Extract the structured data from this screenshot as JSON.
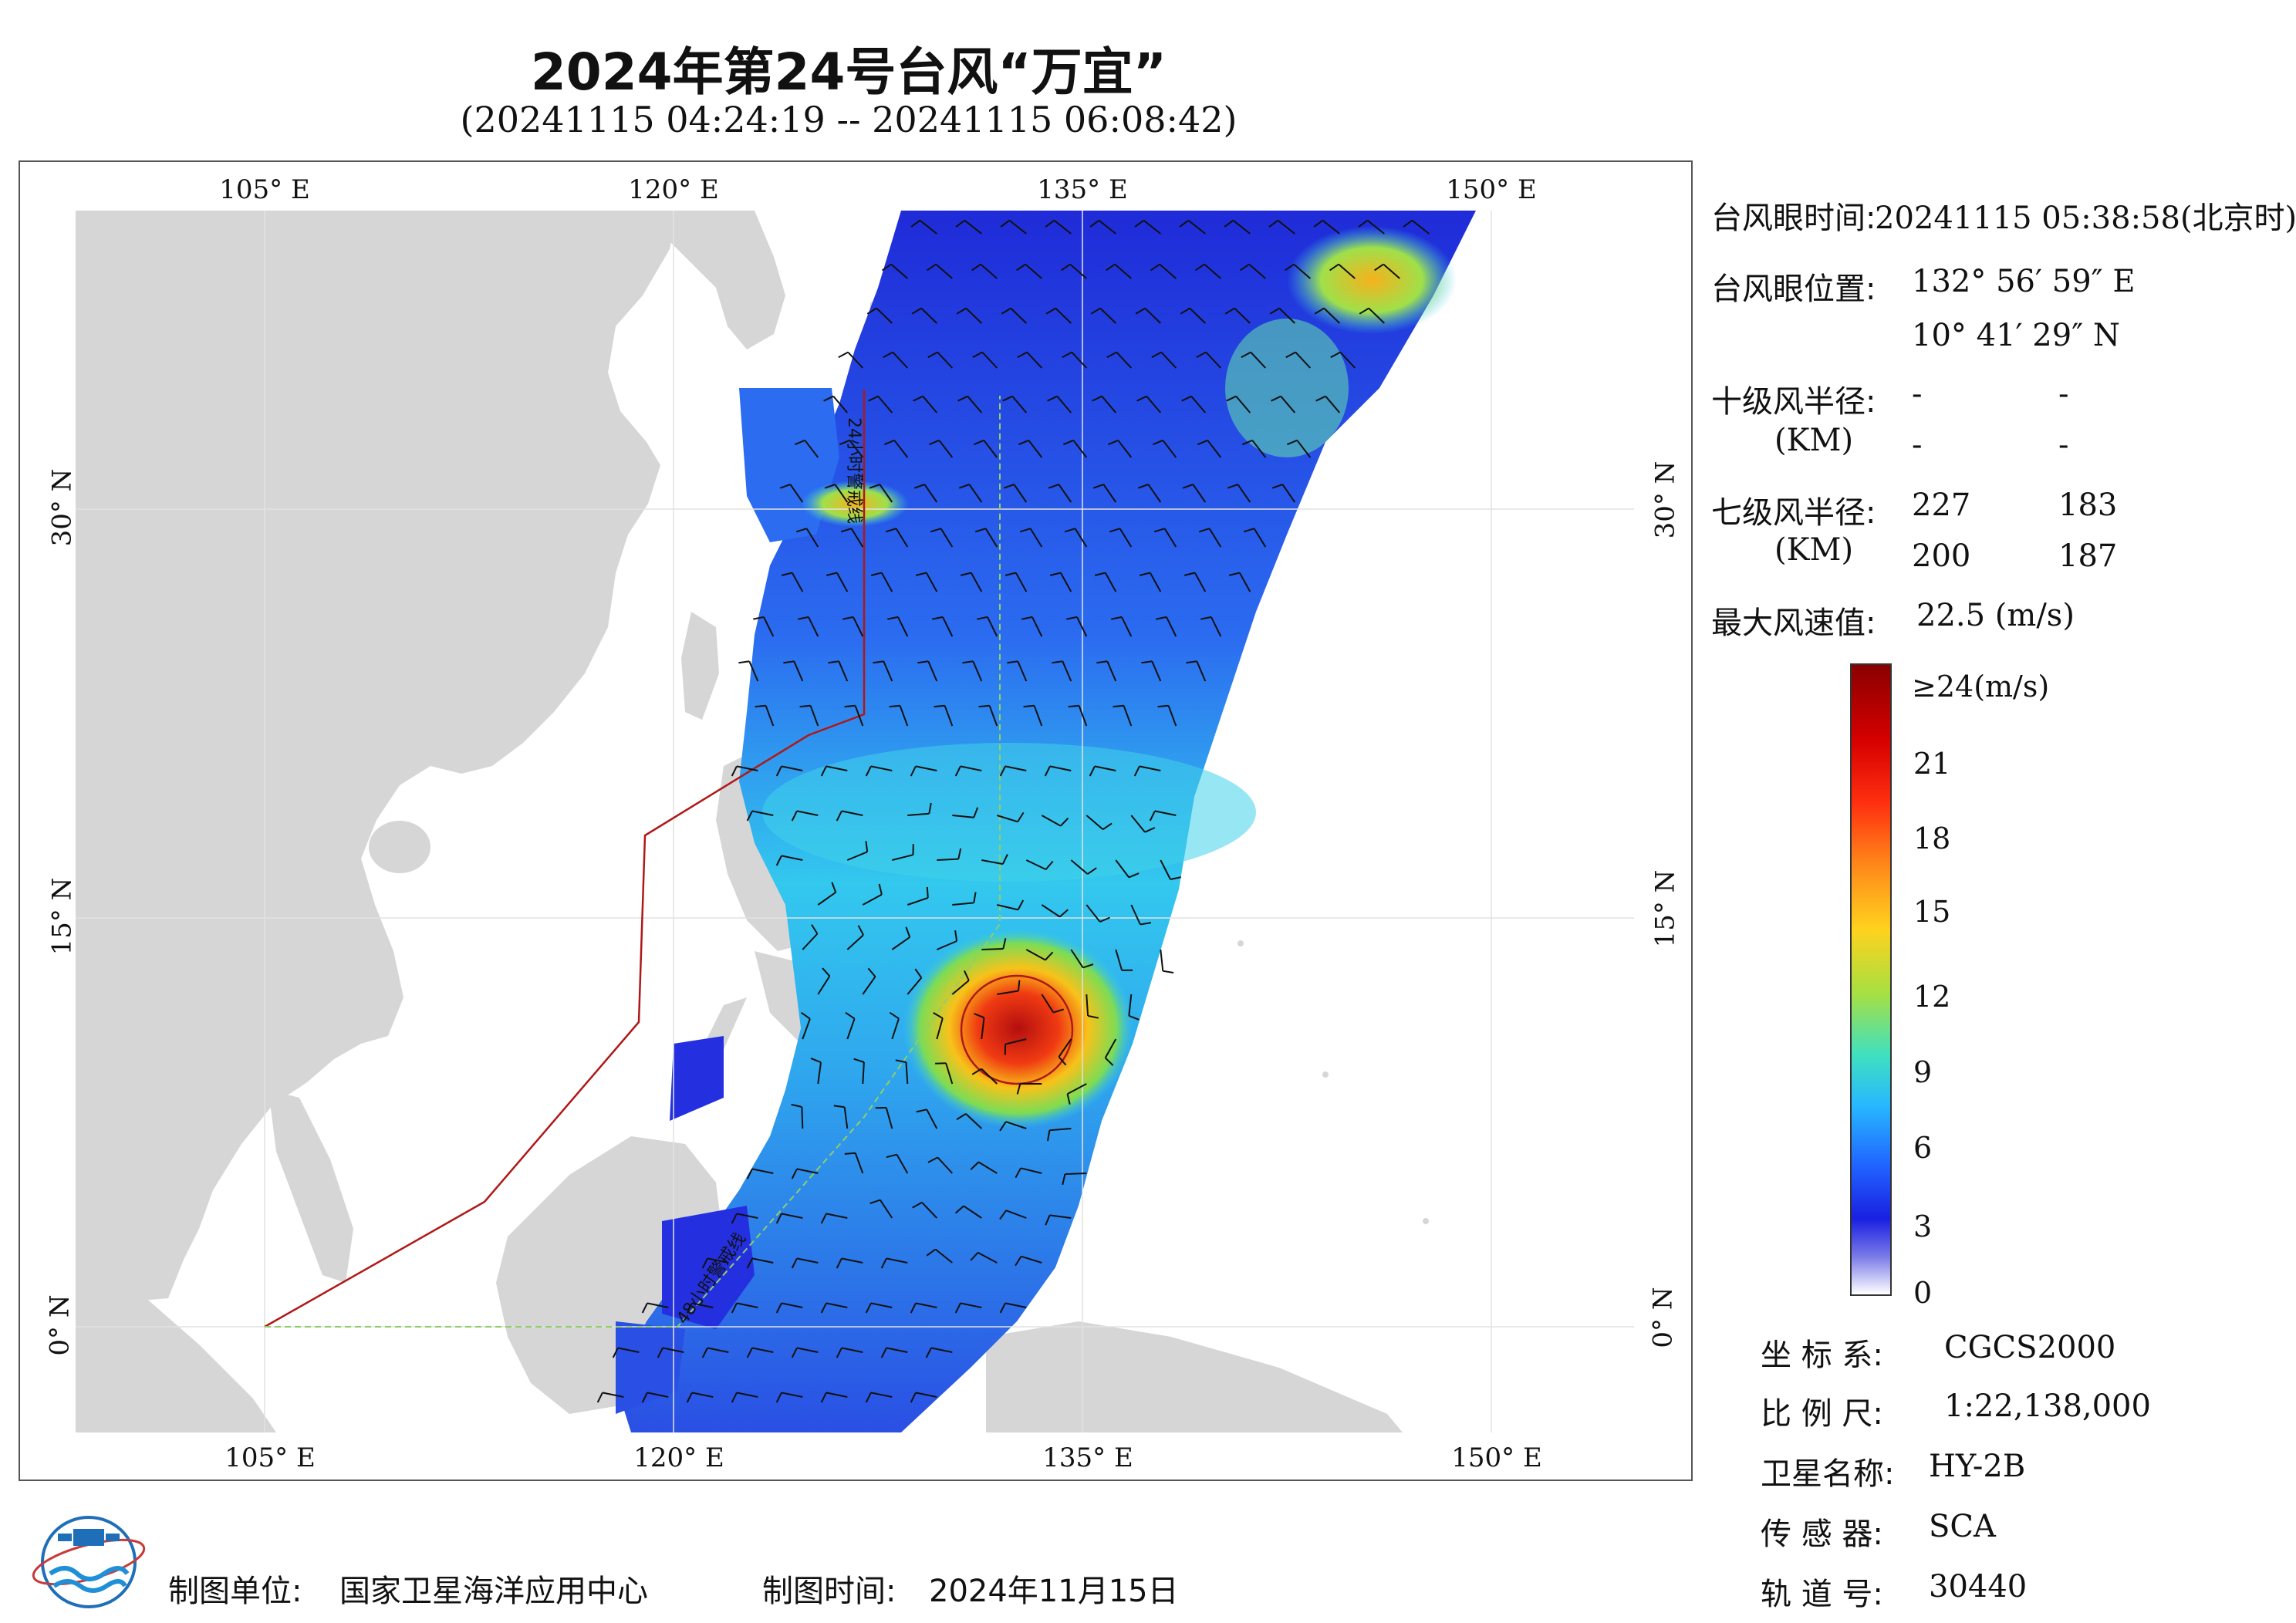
{
  "header": {
    "title": "2024年第24号台风“万宜”",
    "subtitle": "(20241115 04:24:19 -- 20241115 06:08:42)"
  },
  "map": {
    "lon_labels": [
      "105° E",
      "120° E",
      "135° E",
      "150° E"
    ],
    "lat_labels": [
      "30° N",
      "15° N",
      "0° N"
    ],
    "line_labels": [
      "24小时警戒线",
      "48小时警戒线"
    ],
    "colors": {
      "land": "#d6d6d6",
      "ocean": "#ffffff",
      "warning_line": "#b01818",
      "reference_line": "#8fcf6a",
      "circle": "#b01818"
    }
  },
  "info": {
    "eye_time_label": "台风眼时间:",
    "eye_time_value": "20241115 05:38:58(北京时)",
    "eye_pos_label": "台风眼位置:",
    "eye_lon": "132° 56′ 59″ E",
    "eye_lat": "10° 41′ 29″ N",
    "r10_label": "十级风半径:",
    "unit_label": "(KM)",
    "r10_values": [
      "-",
      "-",
      "-",
      "-"
    ],
    "r7_label": "七级风半径:",
    "r7_values": [
      "227",
      "183",
      "200",
      "187"
    ],
    "maxwind_label": "最大风速值:",
    "maxwind_value": "22.5 (m/s)"
  },
  "colorbar": {
    "labels": [
      "≥24(m/s)",
      "21",
      "18",
      "15",
      "12",
      "9",
      "6",
      "3",
      "0"
    ]
  },
  "meta": {
    "crs_label": "坐 标 系:",
    "crs_value": "CGCS2000",
    "scale_label": "比 例 尺:",
    "scale_value": "1:22,138,000",
    "sat_label": "卫星名称:",
    "sat_value": "HY-2B",
    "sensor_label": "传 感 器:",
    "sensor_value": "SCA",
    "orbit_label": "轨 道 号:",
    "orbit_value": "30440"
  },
  "footer": {
    "maker_label": "制图单位:",
    "maker_value": "国家卫星海洋应用中心",
    "date_label": "制图时间:",
    "date_value": "2024年11月15日"
  }
}
